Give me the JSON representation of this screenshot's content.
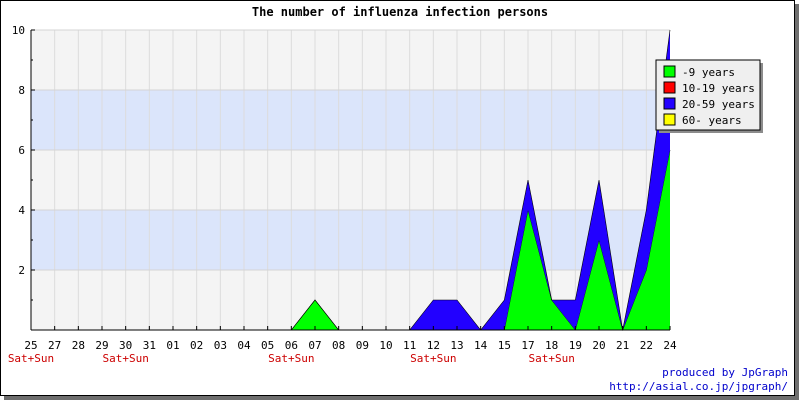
{
  "chart_data": {
    "type": "area",
    "stacked": true,
    "title": "The number of influenza infection persons",
    "xlabel": "",
    "ylabel": "",
    "categories": [
      "25",
      "27",
      "28",
      "29",
      "30",
      "31",
      "01",
      "02",
      "03",
      "04",
      "05",
      "06",
      "07",
      "08",
      "09",
      "10",
      "11",
      "12",
      "13",
      "14",
      "15",
      "17",
      "18",
      "19",
      "20",
      "21",
      "22",
      "24"
    ],
    "weekend_label": "Sat+Sun",
    "weekend_categories": [
      "25",
      "30",
      "06",
      "12",
      "18"
    ],
    "ylim": [
      0,
      10
    ],
    "yticks": [
      2,
      4,
      6,
      8,
      10
    ],
    "grid": true,
    "legend_position": "top-right",
    "series": [
      {
        "name": "-9 years",
        "color": "#00ff00",
        "values": [
          0,
          0,
          0,
          0,
          0,
          0,
          0,
          0,
          0,
          0,
          0,
          0,
          1,
          0,
          0,
          0,
          0,
          0,
          0,
          0,
          0,
          4,
          1,
          0,
          3,
          0,
          2,
          6
        ]
      },
      {
        "name": "10-19 years",
        "color": "#ff0000",
        "values": [
          0,
          0,
          0,
          0,
          0,
          0,
          0,
          0,
          0,
          0,
          0,
          0,
          0,
          0,
          0,
          0,
          0,
          0,
          0,
          0,
          0,
          0,
          0,
          0,
          0,
          0,
          0,
          0
        ]
      },
      {
        "name": "20-59 years",
        "color": "#2200ff",
        "values": [
          0,
          0,
          0,
          0,
          0,
          0,
          0,
          0,
          0,
          0,
          0,
          0,
          0,
          0,
          0,
          0,
          0,
          1,
          1,
          0,
          1,
          1,
          0,
          1,
          2,
          0,
          2,
          4
        ]
      },
      {
        "name": "60- years",
        "color": "#ffff00",
        "values": [
          0,
          0,
          0,
          0,
          0,
          0,
          0,
          0,
          0,
          0,
          0,
          0,
          0,
          0,
          0,
          0,
          0,
          0,
          0,
          0,
          0,
          0,
          0,
          0,
          0,
          0,
          0,
          0
        ]
      }
    ],
    "band_colors": {
      "blue": "#dbe5fb",
      "gray": "#f4f4f4"
    }
  },
  "credits": {
    "line1": "produced by JpGraph",
    "line2": "http://asial.co.jp/jpgraph/"
  }
}
